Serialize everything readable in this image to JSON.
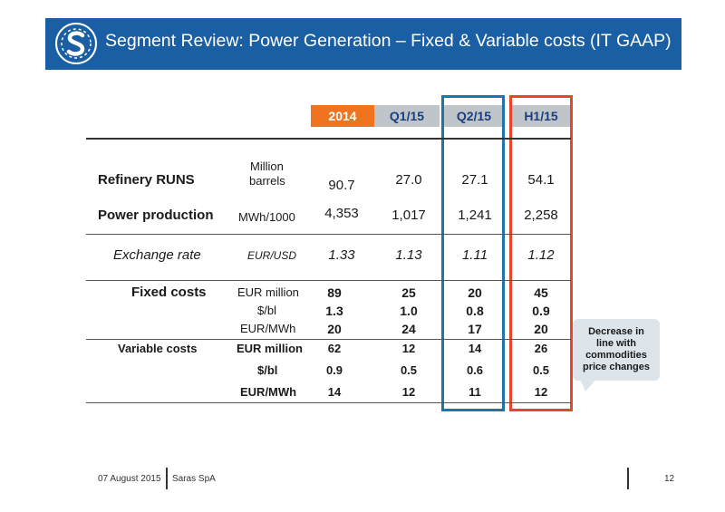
{
  "header": {
    "title": "Segment Review: Power Generation – Fixed & Variable costs (IT GAAP)",
    "logo_icon": "saras-logo-icon"
  },
  "columns": [
    "2014",
    "Q1/15",
    "Q2/15",
    "H1/15"
  ],
  "colors": {
    "header_bg": "#1a5fa3",
    "accent_orange": "#f07320",
    "col_gray": "#bfc5c9",
    "q2_box": "#1f74a8",
    "h1_box": "#e8452a",
    "callout_bg": "#dde4ea"
  },
  "rows": {
    "refinery_runs": {
      "label": "Refinery RUNS",
      "unit_line1": "Million",
      "unit_line2": "barrels",
      "values": [
        "90.7",
        "27.0",
        "27.1",
        "54.1"
      ]
    },
    "power_production": {
      "label": "Power production",
      "unit": "MWh/1000",
      "values": [
        "4,353",
        "1,017",
        "1,241",
        "2,258"
      ]
    },
    "exchange_rate": {
      "label": "Exchange rate",
      "unit": "EUR/USD",
      "values": [
        "1.33",
        "1.13",
        "1.11",
        "1.12"
      ]
    },
    "fixed_costs": {
      "label": "Fixed costs",
      "eur_million": {
        "unit": "EUR million",
        "values": [
          "89",
          "25",
          "20",
          "45"
        ]
      },
      "per_bl": {
        "unit": "$/bl",
        "values": [
          "1.3",
          "1.0",
          "0.8",
          "0.9"
        ]
      },
      "eur_mwh": {
        "unit": "EUR/MWh",
        "values": [
          "20",
          "24",
          "17",
          "20"
        ]
      }
    },
    "variable_costs": {
      "label": "Variable costs",
      "eur_million": {
        "unit": "EUR million",
        "values": [
          "62",
          "12",
          "14",
          "26"
        ]
      },
      "per_bl": {
        "unit": "$/bl",
        "values": [
          "0.9",
          "0.5",
          "0.6",
          "0.5"
        ]
      },
      "eur_mwh": {
        "unit": "EUR/MWh",
        "values": [
          "14",
          "12",
          "11",
          "12"
        ]
      }
    }
  },
  "callout": {
    "line1": "Decrease in",
    "line2": "line with",
    "line3": "commodities",
    "line4": "price changes"
  },
  "footer": {
    "date": "07 August 2015",
    "company": "Saras SpA",
    "page": "12"
  }
}
